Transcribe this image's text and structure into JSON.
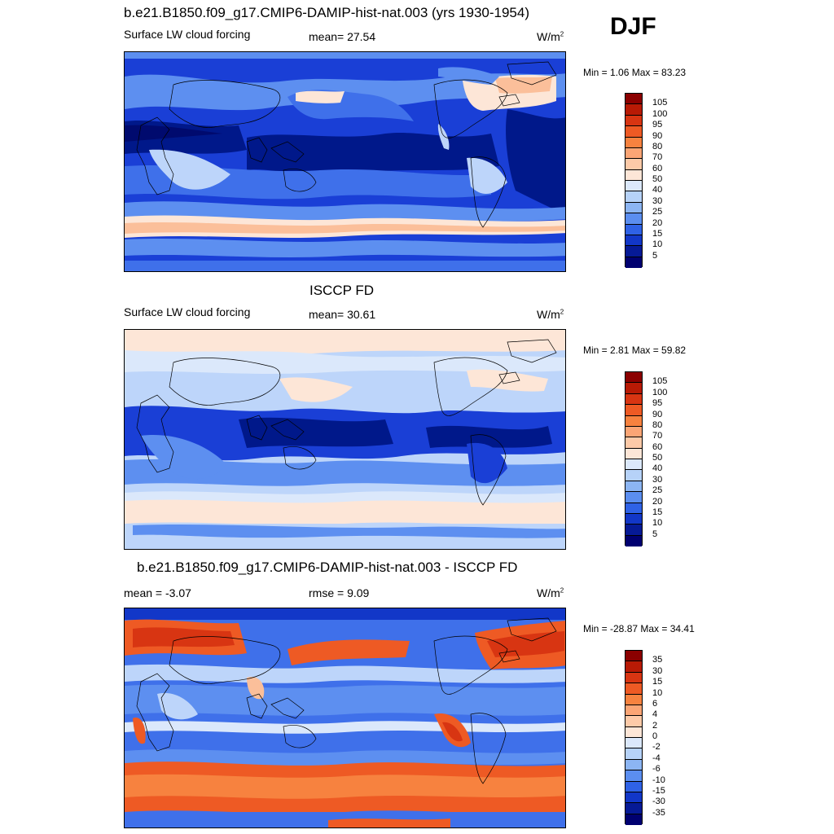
{
  "season": "DJF",
  "panels": [
    {
      "id": "model",
      "title": "b.e21.B1850.f09_g17.CMIP6-DAMIP-hist-nat.003 (yrs 1930-1954)",
      "left_label": "Surface LW cloud forcing",
      "center_label": "mean=  27.54",
      "units": "W/m",
      "units_sup": "2",
      "minmax": "Min =   1.06 Max =  83.23",
      "colorbar_labels": [
        "105",
        "100",
        "95",
        "90",
        "80",
        "70",
        "60",
        "50",
        "40",
        "30",
        "25",
        "20",
        "15",
        "10",
        "5"
      ],
      "colorbar_colors": [
        "#8b0000",
        "#b81a05",
        "#d83512",
        "#ee5a24",
        "#f7823f",
        "#fba575",
        "#fdcaa8",
        "#fde6d7",
        "#dbe8fb",
        "#b6d2f8",
        "#8cb5f3",
        "#5b8ef0",
        "#2f62e6",
        "#1237c8",
        "#061a96",
        "#000070"
      ],
      "palette": {
        "lowest": "#00188a",
        "low": "#1a3fd6",
        "mid": "#5d8ff0",
        "light": "#bdd5fa",
        "pale": "#fde6d7",
        "warm": "#fbbf9a"
      }
    },
    {
      "id": "obs",
      "title": "ISCCP FD",
      "left_label": "Surface LW cloud forcing",
      "center_label": "mean=  30.61",
      "units": "W/m",
      "units_sup": "2",
      "minmax": "Min =   2.81 Max =  59.82",
      "colorbar_labels": [
        "105",
        "100",
        "95",
        "90",
        "80",
        "70",
        "60",
        "50",
        "40",
        "30",
        "25",
        "20",
        "15",
        "10",
        "5"
      ],
      "colorbar_colors": [
        "#8b0000",
        "#b81a05",
        "#d83512",
        "#ee5a24",
        "#f7823f",
        "#fba575",
        "#fdcaa8",
        "#fde6d7",
        "#dbe8fb",
        "#b6d2f8",
        "#8cb5f3",
        "#5b8ef0",
        "#2f62e6",
        "#1237c8",
        "#061a96",
        "#000070"
      ]
    },
    {
      "id": "diff",
      "title": "b.e21.B1850.f09_g17.CMIP6-DAMIP-hist-nat.003 - ISCCP FD",
      "left_label": "mean =  -3.07",
      "center_label": "rmse =    9.09",
      "units": "W/m",
      "units_sup": "2",
      "minmax": "Min = -28.87 Max =  34.41",
      "colorbar_labels": [
        "35",
        "30",
        "15",
        "10",
        "6",
        "4",
        "2",
        "0",
        "-2",
        "-4",
        "-6",
        "-10",
        "-15",
        "-30",
        "-35"
      ],
      "colorbar_colors": [
        "#8b0000",
        "#b81a05",
        "#d83512",
        "#ee5a24",
        "#f7823f",
        "#fba575",
        "#fdcaa8",
        "#fde6d7",
        "#dbe8fb",
        "#b6d2f8",
        "#8cb5f3",
        "#5b8ef0",
        "#2f62e6",
        "#1237c8",
        "#061a96",
        "#000070"
      ]
    }
  ]
}
